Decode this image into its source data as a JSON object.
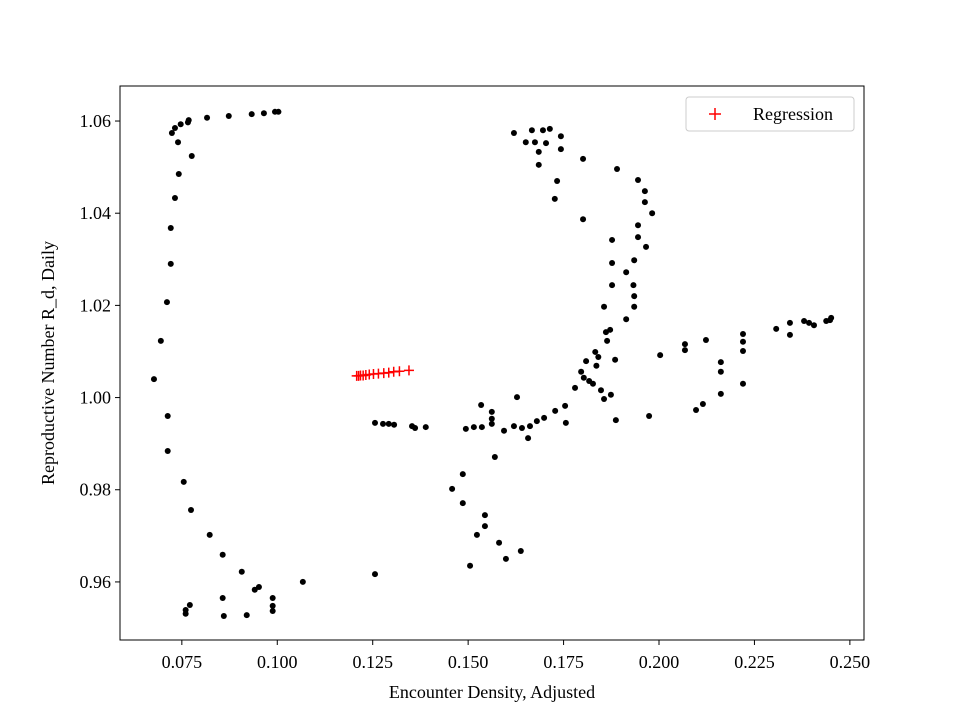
{
  "chart_data": {
    "type": "scatter",
    "xlabel": "Encounter Density, Adjusted",
    "ylabel": "Reproductive Number R_d, Daily",
    "xlim": [
      0.0588,
      0.2537
    ],
    "ylim": [
      0.9474,
      1.0676
    ],
    "xticks": [
      {
        "value": 0.075,
        "label": "0.075"
      },
      {
        "value": 0.1,
        "label": "0.100"
      },
      {
        "value": 0.125,
        "label": "0.125"
      },
      {
        "value": 0.15,
        "label": "0.150"
      },
      {
        "value": 0.175,
        "label": "0.175"
      },
      {
        "value": 0.2,
        "label": "0.200"
      },
      {
        "value": 0.225,
        "label": "0.225"
      },
      {
        "value": 0.25,
        "label": "0.250"
      }
    ],
    "yticks": [
      {
        "value": 0.96,
        "label": "0.96"
      },
      {
        "value": 0.98,
        "label": "0.98"
      },
      {
        "value": 1.0,
        "label": "1.00"
      },
      {
        "value": 1.02,
        "label": "1.02"
      },
      {
        "value": 1.04,
        "label": "1.04"
      },
      {
        "value": 1.06,
        "label": "1.06"
      }
    ],
    "legend": "upper right",
    "series": [
      {
        "color": "#000000",
        "marker": "circle",
        "x": [
          0.1003,
          0.0994,
          0.0965,
          0.0933,
          0.0873,
          0.0816,
          0.0768,
          0.0766,
          0.0747,
          0.0732,
          0.0724,
          0.074,
          0.0776,
          0.0742,
          0.0732,
          0.0721,
          0.0721,
          0.0711,
          0.0695,
          0.0677,
          0.0713,
          0.0713,
          0.0755,
          0.0774,
          0.0823,
          0.0857,
          0.0907,
          0.0952,
          0.0941,
          0.0988,
          0.0988,
          0.0988,
          0.0771,
          0.076,
          0.076,
          0.0857,
          0.086,
          0.092,
          0.1067,
          0.1256,
          0.1256,
          0.1277,
          0.1292,
          0.1306,
          0.1353,
          0.1361,
          0.1389,
          0.1494,
          0.1515,
          0.1536,
          0.1534,
          0.1562,
          0.1562,
          0.1562,
          0.1594,
          0.162,
          0.1641,
          0.1657,
          0.1628,
          0.1662,
          0.168,
          0.1699,
          0.1728,
          0.1754,
          0.1756,
          0.157,
          0.1486,
          0.1458,
          0.1486,
          0.1544,
          0.1544,
          0.1523,
          0.1581,
          0.1638,
          0.1599,
          0.1505,
          0.178,
          0.1796,
          0.1803,
          0.1817,
          0.1809,
          0.1833,
          0.1841,
          0.1836,
          0.1827,
          0.1848,
          0.1856,
          0.1874,
          0.1887,
          0.1872,
          0.1861,
          0.1864,
          0.1856,
          0.1877,
          0.1877,
          0.1877,
          0.1885,
          0.1914,
          0.1914,
          0.1933,
          0.1935,
          0.1935,
          0.1935,
          0.1966,
          0.1945,
          0.1945,
          0.1982,
          0.1963,
          0.1963,
          0.1945,
          0.189,
          0.1801,
          0.1801,
          0.1733,
          0.1727,
          0.1743,
          0.1743,
          0.1714,
          0.1696,
          0.1704,
          0.1685,
          0.1685,
          0.1675,
          0.1667,
          0.162,
          0.1651,
          0.1974,
          0.2003,
          0.2068,
          0.2068,
          0.2123,
          0.2097,
          0.2115,
          0.2162,
          0.2162,
          0.2162,
          0.222,
          0.222,
          0.222,
          0.222,
          0.2307,
          0.2343,
          0.2343,
          0.238,
          0.2393,
          0.2406,
          0.2438,
          0.2448,
          0.2451
        ],
        "values": [
          1.062,
          1.062,
          1.0617,
          1.0615,
          1.0611,
          1.0607,
          1.0602,
          1.0597,
          1.0593,
          1.0585,
          1.0574,
          1.0554,
          1.0524,
          1.0485,
          1.0433,
          1.0368,
          1.029,
          1.0207,
          1.0123,
          1.004,
          0.996,
          0.9884,
          0.9817,
          0.9756,
          0.9702,
          0.9659,
          0.9622,
          0.9589,
          0.9583,
          0.9565,
          0.9548,
          0.9537,
          0.955,
          0.9539,
          0.9531,
          0.9565,
          0.9526,
          0.9528,
          0.96,
          0.9617,
          0.9945,
          0.9943,
          0.9943,
          0.9941,
          0.9938,
          0.9934,
          0.9936,
          0.9932,
          0.9936,
          0.9936,
          0.9984,
          0.9969,
          0.9954,
          0.9943,
          0.9928,
          0.9938,
          0.9934,
          0.9912,
          1.0001,
          0.9938,
          0.9949,
          0.9956,
          0.9971,
          0.9982,
          0.9945,
          0.9871,
          0.9834,
          0.9802,
          0.9771,
          0.9745,
          0.9721,
          0.9702,
          0.9685,
          0.9667,
          0.965,
          0.9635,
          1.0021,
          1.0056,
          1.0043,
          1.0036,
          1.0079,
          1.0099,
          1.0088,
          1.0069,
          1.003,
          1.0016,
          0.9997,
          1.0006,
          0.9951,
          1.0147,
          1.0142,
          1.0123,
          1.0197,
          1.0244,
          1.0292,
          1.0342,
          1.0082,
          1.017,
          1.0272,
          1.0244,
          1.022,
          1.0197,
          1.0298,
          1.0327,
          1.0348,
          1.0374,
          1.04,
          1.0424,
          1.0448,
          1.0472,
          1.0496,
          1.0518,
          1.0387,
          1.047,
          1.0431,
          1.0539,
          1.0567,
          1.0583,
          1.058,
          1.0552,
          1.0533,
          1.0505,
          1.0554,
          1.058,
          1.0574,
          1.0554,
          0.996,
          1.0092,
          1.0116,
          1.0103,
          1.0125,
          0.9973,
          0.9986,
          1.0077,
          1.0056,
          1.0008,
          1.0138,
          1.0121,
          1.0101,
          1.003,
          1.0149,
          1.0162,
          1.0136,
          1.0166,
          1.0162,
          1.0157,
          1.0166,
          1.0168,
          1.0173
        ]
      },
      {
        "name": "Regression",
        "color": "#ff0000",
        "marker": "plus",
        "x": [
          0.1208,
          0.1213,
          0.1218,
          0.1225,
          0.1232,
          0.1241,
          0.1252,
          0.1265,
          0.1279,
          0.1292,
          0.1305,
          0.132,
          0.1345
        ],
        "values": [
          1.0047,
          1.0047,
          1.0048,
          1.0048,
          1.0049,
          1.005,
          1.0051,
          1.0052,
          1.0053,
          1.0054,
          1.0056,
          1.0057,
          1.0059
        ]
      }
    ]
  }
}
